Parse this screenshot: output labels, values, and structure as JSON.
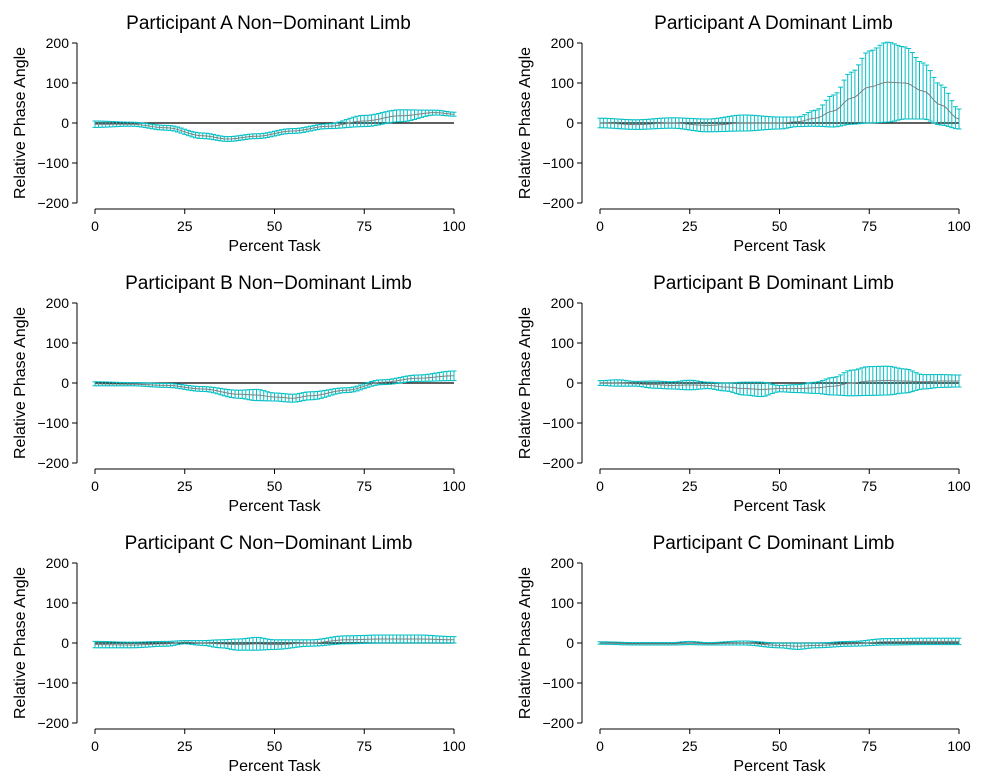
{
  "figure": {
    "colors": {
      "errorbar": "#00BFC4",
      "mean_line": "#7f7f7f",
      "zero_line": "#000000",
      "axis": "#000000"
    }
  },
  "chart_data": [
    {
      "type": "line",
      "title": "Participant A Non−Dominant Limb",
      "xlabel": "Percent Task",
      "ylabel": "Relative Phase Angle",
      "xlim": [
        0,
        100
      ],
      "ylim": [
        -200,
        200
      ],
      "xticks": [
        0,
        25,
        50,
        75,
        100
      ],
      "xtick_labels": [
        "0",
        "25",
        "50",
        "75",
        "100"
      ],
      "yticks": [
        -200,
        -100,
        0,
        100,
        200
      ],
      "ytick_labels": [
        "−200",
        "−100",
        "0",
        "100",
        "200"
      ],
      "grid": false,
      "mean_x": [
        0,
        10,
        20,
        30,
        37,
        45,
        55,
        65,
        75,
        85,
        95,
        100
      ],
      "mean_y": [
        -3,
        -3,
        -12,
        -32,
        -40,
        -33,
        -20,
        -8,
        5,
        18,
        26,
        22
      ],
      "sd_x": [
        0,
        10,
        20,
        30,
        37,
        45,
        55,
        65,
        75,
        85,
        95,
        100
      ],
      "sd": [
        8,
        5,
        6,
        7,
        6,
        6,
        6,
        6,
        14,
        15,
        6,
        5
      ]
    },
    {
      "type": "line",
      "title": "Participant A Dominant Limb",
      "xlabel": "Percent Task",
      "ylabel": "Relative Phase Angle",
      "xlim": [
        0,
        100
      ],
      "ylim": [
        -200,
        200
      ],
      "xticks": [
        0,
        25,
        50,
        75,
        100
      ],
      "xtick_labels": [
        "0",
        "25",
        "50",
        "75",
        "100"
      ],
      "yticks": [
        -200,
        -100,
        0,
        100,
        200
      ],
      "ytick_labels": [
        "−200",
        "−100",
        "0",
        "100",
        "200"
      ],
      "grid": false,
      "mean_x": [
        0,
        10,
        20,
        30,
        40,
        50,
        55,
        60,
        65,
        70,
        75,
        80,
        85,
        90,
        95,
        100
      ],
      "mean_y": [
        0,
        -4,
        0,
        -6,
        0,
        0,
        3,
        12,
        30,
        62,
        90,
        102,
        100,
        80,
        45,
        10
      ],
      "sd_x": [
        0,
        10,
        20,
        30,
        40,
        50,
        55,
        60,
        65,
        70,
        75,
        80,
        85,
        90,
        95,
        100
      ],
      "sd": [
        12,
        12,
        13,
        16,
        20,
        15,
        12,
        20,
        40,
        65,
        90,
        100,
        90,
        70,
        50,
        25
      ]
    },
    {
      "type": "line",
      "title": "Participant B Non−Dominant Limb",
      "xlabel": "Percent Task",
      "ylabel": "Relative Phase Angle",
      "xlim": [
        0,
        100
      ],
      "ylim": [
        -200,
        200
      ],
      "xticks": [
        0,
        25,
        50,
        75,
        100
      ],
      "xtick_labels": [
        "0",
        "25",
        "50",
        "75",
        "100"
      ],
      "yticks": [
        -200,
        -100,
        0,
        100,
        200
      ],
      "ytick_labels": [
        "−200",
        "−100",
        "0",
        "100",
        "200"
      ],
      "grid": false,
      "mean_x": [
        0,
        10,
        20,
        30,
        40,
        45,
        50,
        55,
        60,
        70,
        80,
        90,
        100
      ],
      "mean_y": [
        -2,
        -3,
        -6,
        -15,
        -28,
        -30,
        -35,
        -38,
        -32,
        -18,
        2,
        12,
        18
      ],
      "sd_x": [
        0,
        10,
        20,
        30,
        40,
        45,
        50,
        55,
        60,
        70,
        80,
        90,
        100
      ],
      "sd": [
        5,
        4,
        5,
        6,
        10,
        14,
        10,
        10,
        10,
        6,
        6,
        8,
        12
      ]
    },
    {
      "type": "line",
      "title": "Participant B Dominant Limb",
      "xlabel": "Percent Task",
      "ylabel": "Relative Phase Angle",
      "xlim": [
        0,
        100
      ],
      "ylim": [
        -200,
        200
      ],
      "xticks": [
        0,
        25,
        50,
        75,
        100
      ],
      "xtick_labels": [
        "0",
        "25",
        "50",
        "75",
        "100"
      ],
      "yticks": [
        -200,
        -100,
        0,
        100,
        200
      ],
      "ytick_labels": [
        "−200",
        "−100",
        "0",
        "100",
        "200"
      ],
      "grid": false,
      "mean_x": [
        0,
        5,
        10,
        15,
        20,
        25,
        30,
        35,
        40,
        45,
        50,
        55,
        60,
        65,
        70,
        75,
        80,
        85,
        90,
        95,
        100
      ],
      "mean_y": [
        0,
        0,
        -2,
        -4,
        -6,
        -5,
        -6,
        -10,
        -14,
        -16,
        -14,
        -14,
        -12,
        -8,
        0,
        5,
        6,
        5,
        3,
        5,
        5
      ],
      "sd_x": [
        0,
        5,
        10,
        15,
        20,
        25,
        30,
        35,
        40,
        45,
        50,
        55,
        60,
        65,
        70,
        75,
        80,
        85,
        90,
        95,
        100
      ],
      "sd": [
        6,
        8,
        6,
        9,
        9,
        12,
        8,
        10,
        16,
        18,
        8,
        10,
        14,
        22,
        32,
        36,
        36,
        30,
        18,
        16,
        15
      ]
    },
    {
      "type": "line",
      "title": "Participant C Non−Dominant Limb",
      "xlabel": "Percent Task",
      "ylabel": "Relative Phase Angle",
      "xlim": [
        0,
        100
      ],
      "ylim": [
        -200,
        200
      ],
      "xticks": [
        0,
        25,
        50,
        75,
        100
      ],
      "xtick_labels": [
        "0",
        "25",
        "50",
        "75",
        "100"
      ],
      "yticks": [
        -200,
        -100,
        0,
        100,
        200
      ],
      "ytick_labels": [
        "−200",
        "−100",
        "0",
        "100",
        "200"
      ],
      "grid": false,
      "mean_x": [
        0,
        10,
        20,
        25,
        30,
        35,
        40,
        45,
        50,
        60,
        70,
        80,
        90,
        100
      ],
      "mean_y": [
        -4,
        -5,
        -2,
        2,
        0,
        -2,
        -4,
        -2,
        -4,
        0,
        8,
        10,
        10,
        8
      ],
      "sd_x": [
        0,
        10,
        20,
        25,
        30,
        35,
        40,
        45,
        50,
        60,
        70,
        80,
        90,
        100
      ],
      "sd": [
        8,
        7,
        6,
        4,
        6,
        10,
        14,
        16,
        12,
        8,
        10,
        10,
        10,
        8
      ]
    },
    {
      "type": "line",
      "title": "Participant C Dominant Limb",
      "xlabel": "Percent Task",
      "ylabel": "Relative Phase Angle",
      "xlim": [
        0,
        100
      ],
      "ylim": [
        -200,
        200
      ],
      "xticks": [
        0,
        25,
        50,
        75,
        100
      ],
      "xtick_labels": [
        "0",
        "25",
        "50",
        "75",
        "100"
      ],
      "yticks": [
        -200,
        -100,
        0,
        100,
        200
      ],
      "ytick_labels": [
        "−200",
        "−100",
        "0",
        "100",
        "200"
      ],
      "grid": false,
      "mean_x": [
        0,
        10,
        20,
        25,
        30,
        40,
        50,
        55,
        60,
        70,
        80,
        90,
        100
      ],
      "mean_y": [
        0,
        -2,
        -2,
        0,
        -2,
        0,
        -6,
        -8,
        -6,
        -2,
        3,
        4,
        4
      ],
      "sd_x": [
        0,
        10,
        20,
        25,
        30,
        40,
        50,
        55,
        60,
        70,
        80,
        90,
        100
      ],
      "sd": [
        3,
        3,
        3,
        4,
        3,
        5,
        6,
        8,
        6,
        6,
        8,
        8,
        8
      ]
    }
  ]
}
